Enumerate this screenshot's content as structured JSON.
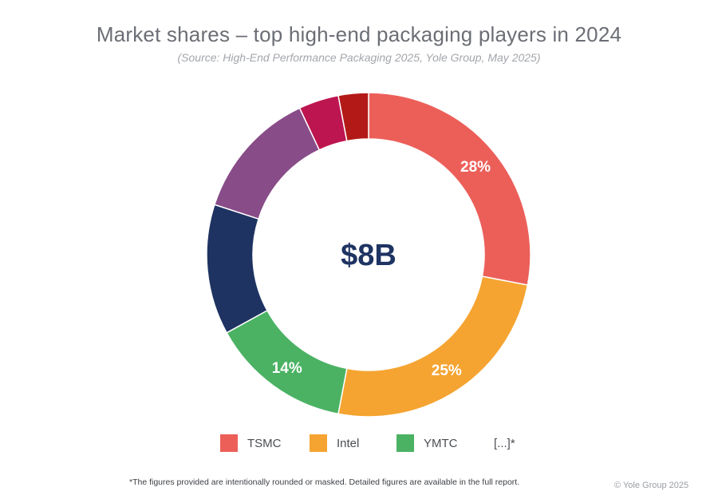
{
  "chart_data": {
    "type": "pie",
    "title": "Market shares – top high-end packaging players in 2024",
    "subtitle": "(Source: High-End Performance Packaging 2025, Yole Group, May 2025)",
    "center_label": "$8B",
    "slices": [
      {
        "name": "TSMC",
        "value": 28,
        "label": "28%",
        "color": "#ec5f59"
      },
      {
        "name": "Intel",
        "value": 25,
        "label": "25%",
        "color": "#f5a431"
      },
      {
        "name": "YMTC",
        "value": 14,
        "label": "14%",
        "color": "#4bb264"
      },
      {
        "name": "",
        "value": 13,
        "label": "",
        "color": "#1e3362"
      },
      {
        "name": "",
        "value": 13,
        "label": "",
        "color": "#884c88"
      },
      {
        "name": "",
        "value": 4,
        "label": "",
        "color": "#bd154f"
      },
      {
        "name": "",
        "value": 3,
        "label": "",
        "color": "#b31a17"
      }
    ],
    "legend": [
      {
        "label": "TSMC",
        "color": "#ec5f59"
      },
      {
        "label": "Intel",
        "color": "#f5a431"
      },
      {
        "label": "YMTC",
        "color": "#4bb264"
      },
      {
        "label": "[...]*",
        "color": null
      }
    ],
    "legend_position": "bottom-center"
  },
  "footnote": "*The figures provided are intentionally rounded or masked. Detailed figures are available in the full report.",
  "copyright": "© Yole Group 2025"
}
